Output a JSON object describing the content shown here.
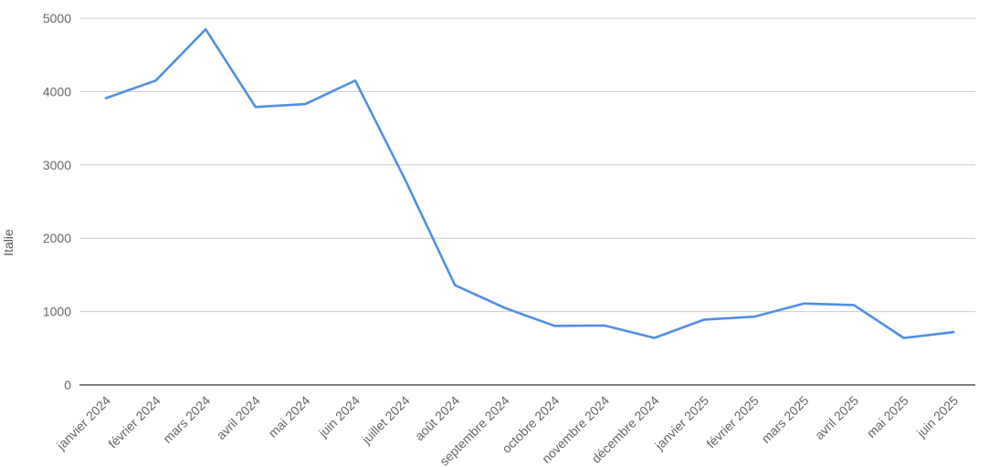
{
  "chart_data": {
    "type": "line",
    "ylabel": "Italie",
    "xlabel": "",
    "ylim": [
      0,
      5000
    ],
    "yticks": [
      0,
      1000,
      2000,
      3000,
      4000,
      5000
    ],
    "grid": true,
    "categories": [
      "janvier 2024",
      "février 2024",
      "mars 2024",
      "avril 2024",
      "mai 2024",
      "juin 2024",
      "juillet 2024",
      "août 2024",
      "septembre 2024",
      "octobre 2024",
      "novembre 2024",
      "décembre 2024",
      "janvier 2025",
      "février 2025",
      "mars 2025",
      "avril 2025",
      "mai 2025",
      "juin 2025"
    ],
    "series": [
      {
        "values": [
          3910,
          4150,
          4850,
          3790,
          3830,
          4150,
          2800,
          1360,
          1050,
          805,
          810,
          640,
          890,
          930,
          1110,
          1090,
          640,
          720
        ],
        "color": "#4f8fe6"
      }
    ]
  }
}
